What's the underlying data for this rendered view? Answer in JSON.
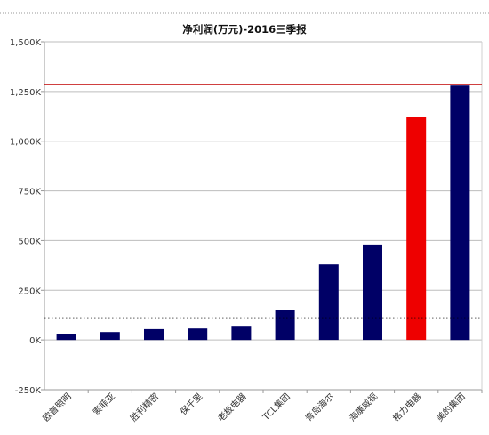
{
  "chart_data": {
    "type": "bar",
    "title": "净利润(万元)-2016三季报",
    "xlabel": "",
    "ylabel": "",
    "categories": [
      "欧普照明",
      "索菲亚",
      "胜利精密",
      "保千里",
      "老板电器",
      "TCL集团",
      "青岛海尔",
      "海康威视",
      "格力电器",
      "美的集团"
    ],
    "values": [
      28000,
      40000,
      55000,
      58000,
      67000,
      150000,
      380000,
      480000,
      1120000,
      1280000
    ],
    "bar_colors": [
      "#000066",
      "#000066",
      "#000066",
      "#000066",
      "#000066",
      "#000066",
      "#000066",
      "#000066",
      "#ee0000",
      "#000066"
    ],
    "ylim": [
      -250000,
      1500000
    ],
    "yticks": [
      -250000,
      0,
      250000,
      500000,
      750000,
      1000000,
      1250000,
      1500000
    ],
    "ytick_labels": [
      "-250K",
      "0K",
      "250K",
      "500K",
      "750K",
      "1,000K",
      "1,250K",
      "1,500K"
    ],
    "reference_lines": [
      {
        "value": 1285000,
        "style": "solid",
        "color": "#c00000"
      },
      {
        "value": 110000,
        "style": "dotted",
        "color": "#000000"
      }
    ],
    "grid": true,
    "legend": "none"
  }
}
